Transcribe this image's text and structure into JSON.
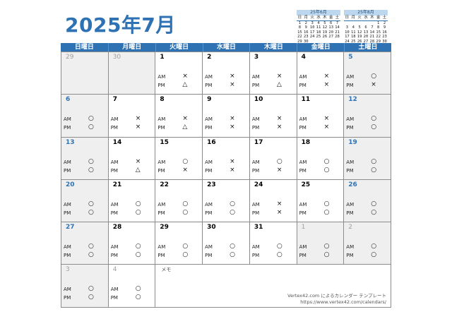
{
  "title": "2025年7月",
  "mini_prev": {
    "title": "25年6月",
    "weekdays": [
      "日",
      "月",
      "火",
      "水",
      "木",
      "金",
      "土"
    ],
    "rows": [
      [
        "1",
        "2",
        "3",
        "4",
        "5",
        "6",
        "7"
      ],
      [
        "8",
        "9",
        "10",
        "11",
        "12",
        "13",
        "14"
      ],
      [
        "15",
        "16",
        "17",
        "18",
        "19",
        "20",
        "21"
      ],
      [
        "22",
        "23",
        "24",
        "25",
        "26",
        "27",
        "28"
      ],
      [
        "29",
        "30",
        "",
        "",
        "",
        "",
        ""
      ]
    ]
  },
  "mini_next": {
    "title": "25年8月",
    "weekdays": [
      "日",
      "月",
      "火",
      "水",
      "木",
      "金",
      "土"
    ],
    "rows": [
      [
        "",
        "",
        "",
        "",
        "",
        "1",
        "2"
      ],
      [
        "3",
        "4",
        "5",
        "6",
        "7",
        "8",
        "9"
      ],
      [
        "10",
        "11",
        "12",
        "13",
        "14",
        "15",
        "16"
      ],
      [
        "17",
        "18",
        "19",
        "20",
        "21",
        "22",
        "23"
      ],
      [
        "24",
        "25",
        "26",
        "27",
        "28",
        "29",
        "30"
      ],
      [
        "31",
        "",
        "",
        "",
        "",
        "",
        ""
      ]
    ]
  },
  "weekdays": [
    "日曜日",
    "月曜日",
    "火曜日",
    "水曜日",
    "木曜日",
    "金曜日",
    "土曜日"
  ],
  "am_label": "AM",
  "pm_label": "PM",
  "days": [
    {
      "d": "29",
      "type": "other",
      "am": "",
      "pm": ""
    },
    {
      "d": "30",
      "type": "other",
      "am": "",
      "pm": ""
    },
    {
      "d": "1",
      "type": "cur",
      "am": "×",
      "pm": "△"
    },
    {
      "d": "2",
      "type": "cur",
      "am": "×",
      "pm": "×"
    },
    {
      "d": "3",
      "type": "cur",
      "am": "×",
      "pm": "△"
    },
    {
      "d": "4",
      "type": "cur",
      "am": "×",
      "pm": "×"
    },
    {
      "d": "5",
      "type": "sat",
      "am": "○",
      "pm": "×"
    },
    {
      "d": "6",
      "type": "sun",
      "am": "○",
      "pm": "○"
    },
    {
      "d": "7",
      "type": "cur",
      "am": "×",
      "pm": "×"
    },
    {
      "d": "8",
      "type": "cur",
      "am": "×",
      "pm": "△"
    },
    {
      "d": "9",
      "type": "cur",
      "am": "×",
      "pm": "×"
    },
    {
      "d": "10",
      "type": "cur",
      "am": "×",
      "pm": "×"
    },
    {
      "d": "11",
      "type": "cur",
      "am": "×",
      "pm": "×"
    },
    {
      "d": "12",
      "type": "sat",
      "am": "○",
      "pm": "○"
    },
    {
      "d": "13",
      "type": "sun",
      "am": "○",
      "pm": "○"
    },
    {
      "d": "14",
      "type": "cur",
      "am": "×",
      "pm": "△"
    },
    {
      "d": "15",
      "type": "cur",
      "am": "○",
      "pm": "×"
    },
    {
      "d": "16",
      "type": "cur",
      "am": "×",
      "pm": "×"
    },
    {
      "d": "17",
      "type": "cur",
      "am": "○",
      "pm": "×"
    },
    {
      "d": "18",
      "type": "cur",
      "am": "○",
      "pm": "○"
    },
    {
      "d": "19",
      "type": "sat",
      "am": "○",
      "pm": "○"
    },
    {
      "d": "20",
      "type": "sun",
      "am": "○",
      "pm": "○"
    },
    {
      "d": "21",
      "type": "cur",
      "am": "○",
      "pm": "○"
    },
    {
      "d": "22",
      "type": "cur",
      "am": "○",
      "pm": "○"
    },
    {
      "d": "23",
      "type": "cur",
      "am": "○",
      "pm": "○"
    },
    {
      "d": "24",
      "type": "cur",
      "am": "×",
      "pm": "×"
    },
    {
      "d": "25",
      "type": "cur",
      "am": "○",
      "pm": "○"
    },
    {
      "d": "26",
      "type": "sat",
      "am": "○",
      "pm": "○"
    },
    {
      "d": "27",
      "type": "sun",
      "am": "○",
      "pm": "○"
    },
    {
      "d": "28",
      "type": "cur",
      "am": "○",
      "pm": "○"
    },
    {
      "d": "29",
      "type": "cur",
      "am": "○",
      "pm": "○"
    },
    {
      "d": "30",
      "type": "cur",
      "am": "○",
      "pm": "○"
    },
    {
      "d": "31",
      "type": "cur",
      "am": "○",
      "pm": "○"
    },
    {
      "d": "1",
      "type": "other",
      "am": "○",
      "pm": "○"
    },
    {
      "d": "2",
      "type": "other",
      "am": "○",
      "pm": "○"
    },
    {
      "d": "3",
      "type": "other",
      "am": "○",
      "pm": "○"
    },
    {
      "d": "4",
      "type": "other-white",
      "am": "○",
      "pm": "○"
    }
  ],
  "memo_label": "メモ",
  "credit_line1": "Vertex42.com によるカレンダー テンプレート",
  "credit_line2": "https://www.vertex42.com/calendars/",
  "colors": {
    "accent": "#2f72b3",
    "shade": "#efefef",
    "mini_head": "#bdd7ee"
  }
}
